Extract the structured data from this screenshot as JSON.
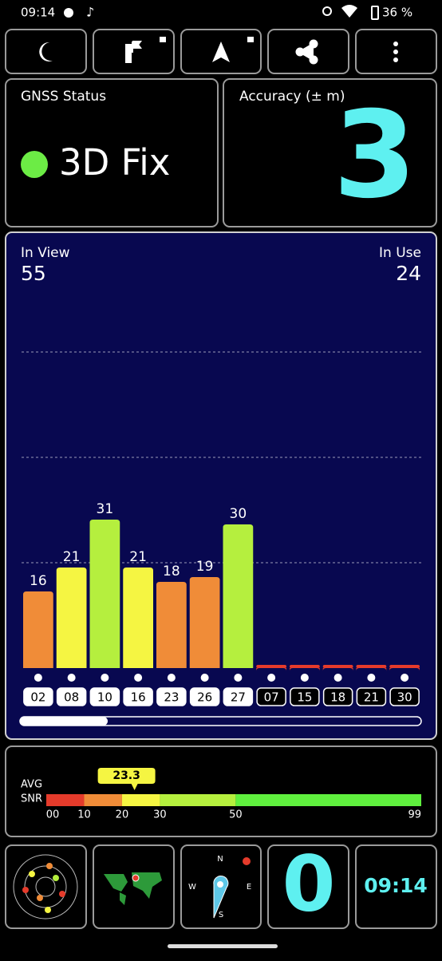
{
  "status_bar": {
    "time": "09:14",
    "battery": "36 %"
  },
  "gnss_status": {
    "label": "GNSS Status",
    "value": "3D Fix"
  },
  "accuracy": {
    "label": "Accuracy (± m)",
    "value": "3"
  },
  "satellites": {
    "in_view_label": "In View",
    "in_view": 55,
    "in_use_label": "In Use",
    "in_use": 24
  },
  "snr_chart": {
    "type": "bar",
    "categories": [
      "02",
      "08",
      "10",
      "16",
      "23",
      "26",
      "27",
      "07",
      "15",
      "18",
      "21",
      "30"
    ],
    "values": [
      16,
      21,
      31,
      21,
      18,
      19,
      30,
      0,
      0,
      0,
      0,
      0
    ],
    "colors": [
      "#f08c38",
      "#f5f542",
      "#b5ef3e",
      "#f5f542",
      "#f08c38",
      "#f08c38",
      "#b5ef3e",
      "#e53b2b",
      "#e53b2b",
      "#e53b2b",
      "#e53b2b",
      "#e53b2b"
    ],
    "in_use": [
      true,
      true,
      true,
      true,
      true,
      true,
      true,
      false,
      false,
      false,
      false,
      false
    ],
    "ylim": [
      0,
      80
    ],
    "gridlines": [
      22,
      44,
      66
    ]
  },
  "avg_snr": {
    "label_1": "AVG",
    "label_2": "SNR",
    "value": 23.3,
    "xlim": [
      0,
      99
    ],
    "ticks": [
      {
        "value": 0,
        "label": "00"
      },
      10,
      20,
      30,
      50,
      99
    ],
    "band_colors": [
      "#e53b2b",
      "#f08c38",
      "#f5f542",
      "#b5ef3e",
      "#5ff03e"
    ]
  },
  "bottom": {
    "compass": {
      "n": "N",
      "e": "E",
      "s": "S",
      "w": "W"
    },
    "speed": "0",
    "clock": "09:14"
  }
}
